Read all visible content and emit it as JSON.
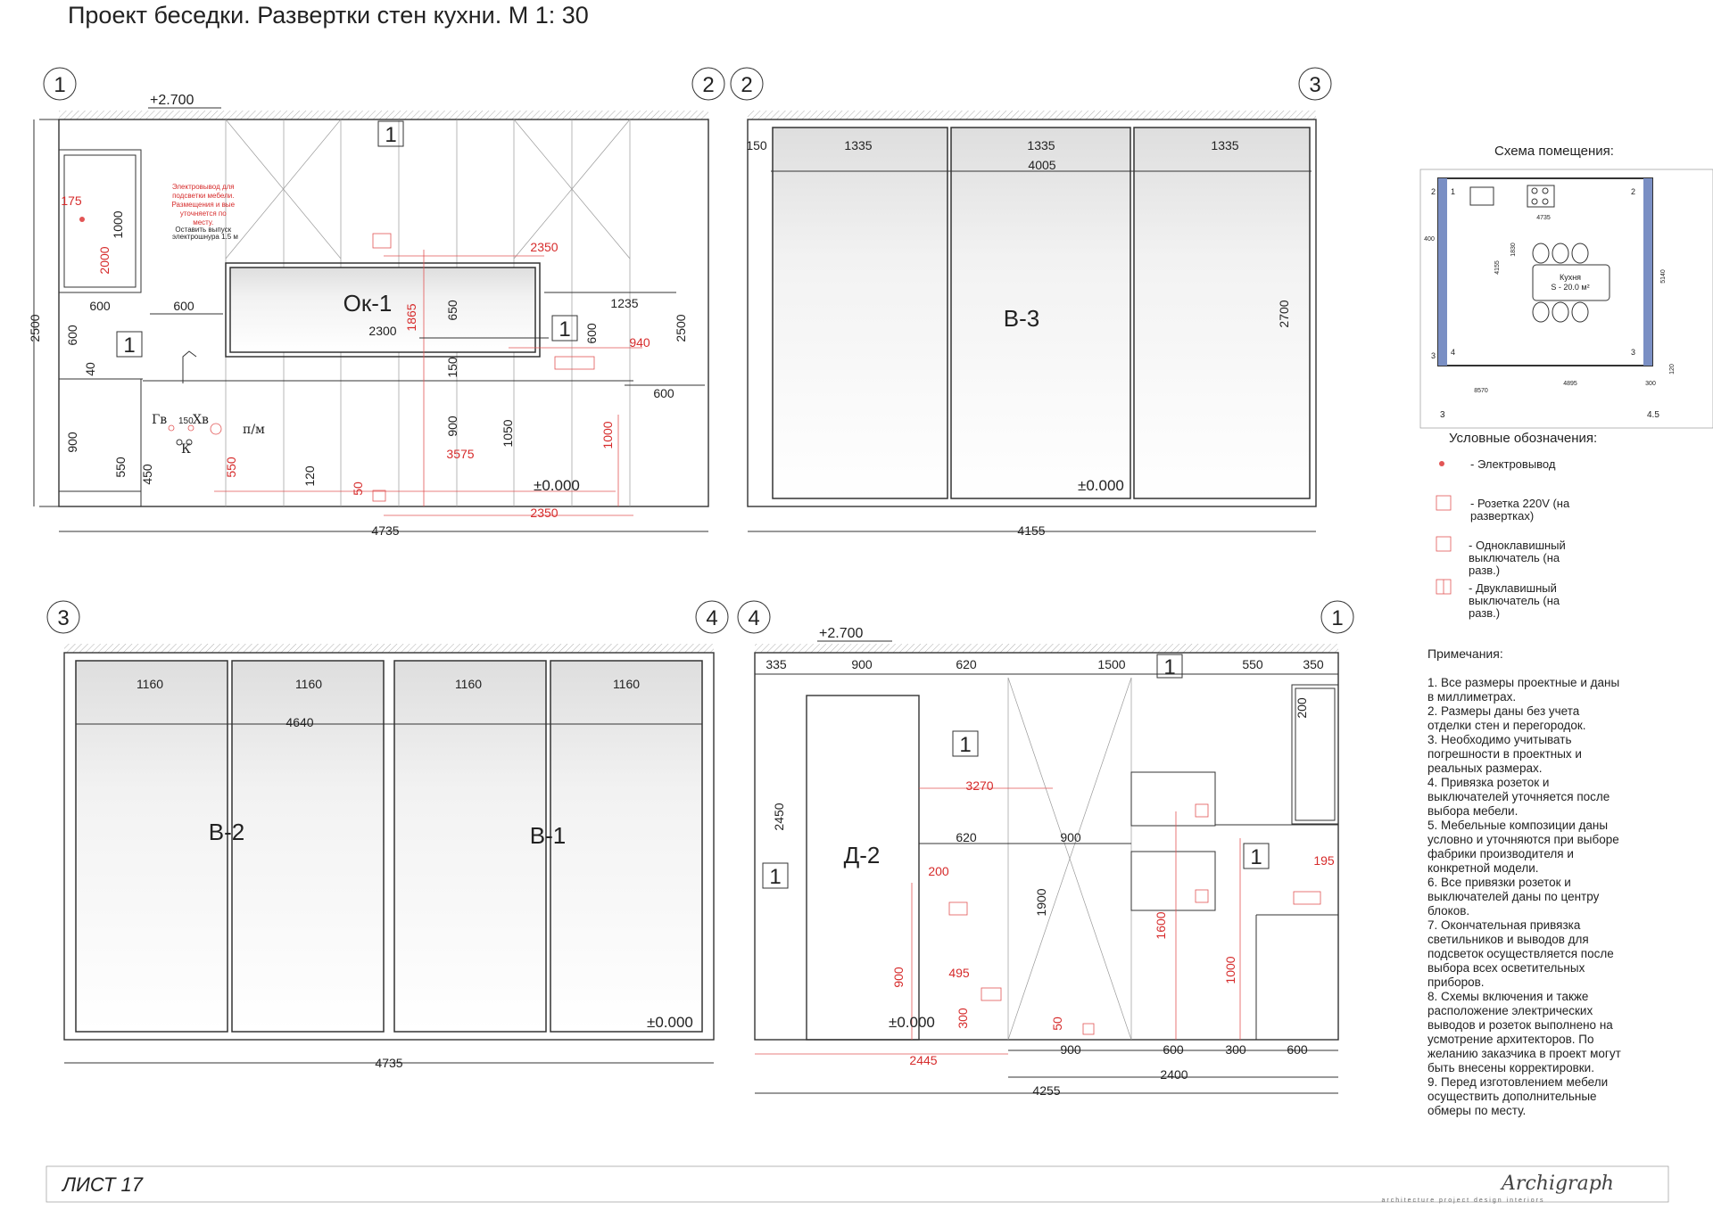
{
  "title": "Проект беседки. Развертки стен кухни. М 1: 30",
  "sheet": "ЛИСТ 17",
  "brand": {
    "logo": "Archigraph",
    "tagline": "architecture  project  design  interiors"
  },
  "elevation1": {
    "axis_left": "1",
    "axis_right": "2",
    "level_top": "+2.700",
    "level_zero": "±0.000",
    "window": "Ок-1",
    "tags": [
      "1",
      "1",
      "1"
    ],
    "note_lines": [
      "Электровывод для",
      "подсветки мебели.",
      "Размещения и вые",
      "уточняется по",
      "месту.",
      "Оставить выпуск",
      "электрошнура 1.5 м"
    ],
    "fixtures": {
      "hot": "Гв",
      "cold": "Хв",
      "gap": "150",
      "k": "К",
      "pm": "п/м"
    },
    "dims_black": [
      "1000",
      "2500",
      "600",
      "600",
      "600",
      "40",
      "2300",
      "650",
      "150",
      "1235",
      "600",
      "2500",
      "600",
      "900",
      "550",
      "450",
      "120",
      "900",
      "1050",
      "4735"
    ],
    "dims_red": [
      "175",
      "2000",
      "2350",
      "1865",
      "940",
      "550",
      "3575",
      "50",
      "1000",
      "2350"
    ]
  },
  "elevation2": {
    "axis_left": "2",
    "axis_right": "3",
    "label": "В-3",
    "level_zero": "±0.000",
    "dims": [
      "150",
      "1335",
      "1335",
      "1335",
      "4005",
      "2700",
      "4155"
    ]
  },
  "elevation3": {
    "axis_left": "3",
    "axis_right": "4",
    "labels": [
      "В-2",
      "В-1"
    ],
    "level_zero": "±0.000",
    "dims": [
      "1160",
      "1160",
      "1160",
      "1160",
      "4640",
      "4735"
    ]
  },
  "elevation4": {
    "axis_left": "4",
    "axis_right": "1",
    "label": "Д-2",
    "level_top": "+2.700",
    "level_zero": "±0.000",
    "tags": [
      "1",
      "1",
      "1",
      "1"
    ],
    "dims_black": [
      "335",
      "900",
      "620",
      "1500",
      "550",
      "350",
      "200",
      "2450",
      "620",
      "900",
      "1900",
      "900",
      "600",
      "300",
      "600",
      "2400",
      "4255"
    ],
    "dims_red": [
      "3270",
      "200",
      "195",
      "1600",
      "900",
      "495",
      "1000",
      "300",
      "50",
      "2445"
    ]
  },
  "schema": {
    "title": "Схема помещения:",
    "room_label": "Кухня",
    "area": "S - 20.0 м²",
    "dims": [
      "4735",
      "400",
      "1830",
      "4155",
      "5140",
      "120",
      "300",
      "8570",
      "4895"
    ],
    "axes": [
      "2",
      "1",
      "2",
      "3",
      "4",
      "3",
      "3",
      "4.5"
    ]
  },
  "legend": {
    "title": "Условные обозначения:",
    "items": [
      {
        "symbol": "outlet-dot",
        "text": [
          "- Электровывод"
        ]
      },
      {
        "symbol": "socket",
        "text": [
          "- Розетка 220V (на",
          "развертках)"
        ]
      },
      {
        "symbol": "switch1",
        "text": [
          "- Одноклавишный",
          "выключатель (на",
          "разв.)"
        ]
      },
      {
        "symbol": "switch2",
        "text": [
          "- Двуклавишный",
          "выключатель (на",
          "разв.)"
        ]
      }
    ]
  },
  "notes": {
    "title": "Примечания:",
    "lines": [
      "1. Все размеры проектные и даны",
      "в миллиметрах.",
      "2. Размеры даны без учета",
      "отделки стен и перегородок.",
      "3. Необходимо учитывать",
      "погрешности в проектных и",
      "реальных размерах.",
      "4. Привязка розеток и",
      "выключателей уточняется после",
      "выбора мебели.",
      "5. Мебельные композиции даны",
      "условно и уточняются при выборе",
      "фабрики производителя и",
      "конкретной модели.",
      "6. Все привязки розеток и",
      "выключателей  даны по центру",
      "блоков.",
      "7. Окончательная привязка",
      "светильников и выводов для",
      "подсветок осуществляется после",
      "выбора всех осветительных",
      "приборов.",
      "8. Схемы включения и также",
      "расположение электрических",
      "выводов и розеток выполнено на",
      "усмотрение архитекторов. По",
      "желанию заказчика в проект могут",
      "быть внесены корректировки.",
      "9. Перед изготовлением мебели",
      "осуществить дополнительные",
      "обмеры по месту."
    ]
  },
  "colors": {
    "accent_red": "#d62b2b",
    "line": "#333333"
  }
}
